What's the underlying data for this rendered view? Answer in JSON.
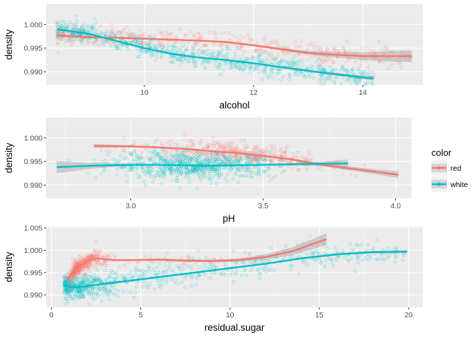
{
  "colors": {
    "red": "#F8766D",
    "white": "#00BFC4",
    "ribbon": "#999999",
    "panel": "#EBEBEB"
  },
  "legend": {
    "title": "color",
    "entries": [
      "red",
      "white"
    ]
  },
  "chart_data": [
    {
      "type": "scatter",
      "xlabel": "alcohol",
      "ylabel": "density",
      "xlim": [
        8.2,
        15.1
      ],
      "ylim": [
        0.9872,
        1.0043
      ],
      "xticks": [
        10,
        12,
        14
      ],
      "yticks": [
        0.99,
        0.995,
        1.0
      ],
      "xtick_labels": [
        "10",
        "12",
        "14"
      ],
      "ytick_labels": [
        "0.990",
        "0.995",
        "1.000"
      ],
      "grid": true,
      "series": [
        {
          "name": "red",
          "smooth": {
            "x": [
              8.4,
              9.0,
              9.5,
              10.0,
              10.5,
              11.0,
              11.5,
              12.0,
              12.5,
              13.0,
              13.5,
              14.0,
              14.5,
              14.9
            ],
            "y": [
              0.9977,
              0.9973,
              0.9972,
              0.997,
              0.9968,
              0.9966,
              0.9963,
              0.9956,
              0.9948,
              0.994,
              0.9936,
              0.9933,
              0.9933,
              0.9933
            ]
          },
          "ribbon_halfwidth": [
            0.0003,
            0.0002,
            0.0001,
            0.0001,
            0.0001,
            0.0001,
            0.0002,
            0.0002,
            0.0003,
            0.0004,
            0.0006,
            0.0008,
            0.0011,
            0.0013
          ],
          "points": {
            "count": 420,
            "x_range": [
              8.4,
              14.9
            ],
            "y_spread": 0.0019
          }
        },
        {
          "name": "white",
          "smooth": {
            "x": [
              8.4,
              9.0,
              9.5,
              10.0,
              10.5,
              11.0,
              11.5,
              12.0,
              12.5,
              13.0,
              13.5,
              14.0,
              14.2
            ],
            "y": [
              0.999,
              0.998,
              0.9965,
              0.995,
              0.9938,
              0.993,
              0.9925,
              0.9918,
              0.991,
              0.9902,
              0.9895,
              0.9888,
              0.9886
            ]
          },
          "ribbon_halfwidth": [
            0.0003,
            0.0002,
            0.0001,
            0.0001,
            0.0001,
            0.0001,
            0.0001,
            0.0001,
            0.0001,
            0.0002,
            0.0003,
            0.0004,
            0.0005
          ],
          "points": {
            "count": 750,
            "x_range": [
              8.4,
              14.2
            ],
            "y_spread": 0.002
          }
        }
      ]
    },
    {
      "type": "scatter",
      "xlabel": "pH",
      "ylabel": "density",
      "xlim": [
        2.68,
        4.06
      ],
      "ylim": [
        0.9872,
        1.0043
      ],
      "xticks": [
        3.0,
        3.5,
        4.0
      ],
      "yticks": [
        0.99,
        0.995,
        1.0
      ],
      "xtick_labels": [
        "3.0",
        "3.5",
        "4.0"
      ],
      "ytick_labels": [
        "0.990",
        "0.995",
        "1.000"
      ],
      "grid": true,
      "series": [
        {
          "name": "red",
          "smooth": {
            "x": [
              2.86,
              3.0,
              3.1,
              3.2,
              3.3,
              3.4,
              3.5,
              3.6,
              3.7,
              3.8,
              3.9,
              4.01
            ],
            "y": [
              0.9983,
              0.9982,
              0.998,
              0.9977,
              0.9972,
              0.9968,
              0.9962,
              0.9955,
              0.9945,
              0.9937,
              0.993,
              0.9922
            ]
          },
          "ribbon_halfwidth": [
            0.0004,
            0.0002,
            0.0001,
            0.0001,
            0.0001,
            0.0001,
            0.0001,
            0.0002,
            0.0003,
            0.0004,
            0.0005,
            0.0007
          ],
          "points": {
            "count": 420,
            "x_range": [
              2.86,
              4.01
            ],
            "y_spread": 0.002
          }
        },
        {
          "name": "white",
          "smooth": {
            "x": [
              2.72,
              2.85,
              3.0,
              3.1,
              3.2,
              3.3,
              3.4,
              3.5,
              3.6,
              3.7,
              3.82
            ],
            "y": [
              0.9938,
              0.9941,
              0.9943,
              0.9943,
              0.9942,
              0.9941,
              0.9942,
              0.9943,
              0.9944,
              0.9945,
              0.9946
            ]
          },
          "ribbon_halfwidth": [
            0.0013,
            0.0006,
            0.0002,
            0.0001,
            0.0001,
            0.0001,
            0.0001,
            0.0001,
            0.0002,
            0.0004,
            0.0008
          ],
          "points": {
            "count": 750,
            "x_range": [
              2.72,
              3.82
            ],
            "y_spread": 0.0026
          }
        }
      ]
    },
    {
      "type": "scatter",
      "xlabel": "residual.sugar",
      "ylabel": "density",
      "xlim": [
        -0.3,
        20.8
      ],
      "ylim": [
        0.9872,
        1.0053
      ],
      "xticks": [
        0,
        5,
        10,
        15,
        20
      ],
      "yticks": [
        0.99,
        0.995,
        1.0,
        1.005
      ],
      "xtick_labels": [
        "0",
        "5",
        "10",
        "15",
        "20"
      ],
      "ytick_labels": [
        "0.990",
        "0.995",
        "1.000",
        "1.005"
      ],
      "grid": true,
      "series": [
        {
          "name": "red",
          "smooth": {
            "x": [
              0.9,
              1.3,
              1.8,
              2.2,
              2.6,
              3.0,
              3.5,
              4.5,
              6.0,
              7.5,
              9.0,
              10.5,
              12.0,
              13.5,
              15.4
            ],
            "y": [
              0.9935,
              0.9955,
              0.997,
              0.9978,
              0.9982,
              0.998,
              0.9978,
              0.9978,
              0.9979,
              0.9977,
              0.9976,
              0.9978,
              0.9985,
              0.9998,
              1.0025
            ]
          },
          "ribbon_halfwidth": [
            0.0006,
            0.0003,
            0.0001,
            0.0001,
            0.0001,
            0.0001,
            0.0002,
            0.0002,
            0.0003,
            0.0003,
            0.0003,
            0.0004,
            0.0006,
            0.0009,
            0.0013
          ],
          "points": {
            "count": 420,
            "x_range": [
              0.9,
              15.4
            ],
            "y_spread": 0.0016
          }
        },
        {
          "name": "white",
          "smooth": {
            "x": [
              0.7,
              1.0,
              1.5,
              2.0,
              3.0,
              4.0,
              6.0,
              8.0,
              10.0,
              12.0,
              14.0,
              16.0,
              18.0,
              19.9
            ],
            "y": [
              0.9922,
              0.9918,
              0.9917,
              0.992,
              0.9925,
              0.993,
              0.994,
              0.995,
              0.996,
              0.997,
              0.9982,
              0.9991,
              0.9996,
              0.9997
            ]
          },
          "ribbon_halfwidth": [
            0.0002,
            0.0001,
            0.0001,
            0.0001,
            0.0001,
            0.0001,
            0.0001,
            0.0001,
            0.0001,
            0.0001,
            0.0002,
            0.0002,
            0.0003,
            0.0004
          ],
          "points": {
            "count": 750,
            "x_range": [
              0.7,
              19.9
            ],
            "y_spread": 0.0024
          }
        }
      ]
    }
  ]
}
